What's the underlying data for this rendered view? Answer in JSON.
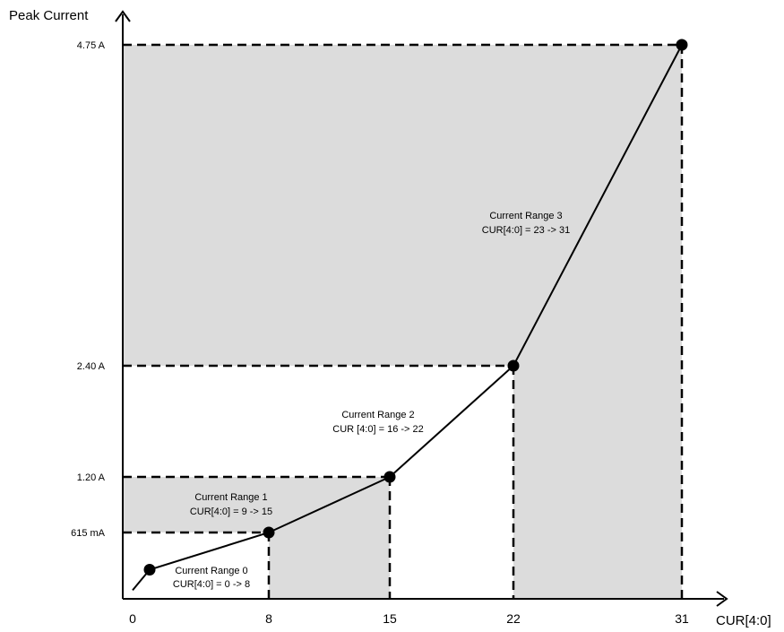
{
  "chart_data": {
    "type": "line",
    "xlabel": "CUR[4:0]",
    "ylabel": "Peak Current",
    "x_ticks": [
      {
        "value": 0,
        "label": "0"
      },
      {
        "value": 8,
        "label": "8"
      },
      {
        "value": 15,
        "label": "15"
      },
      {
        "value": 22,
        "label": "22"
      },
      {
        "value": 31,
        "label": "31"
      }
    ],
    "y_ticks": [
      {
        "value": 0.615,
        "label": "615  mA"
      },
      {
        "value": 1.2,
        "label": "1.20  A"
      },
      {
        "value": 2.4,
        "label": "2.40  A"
      },
      {
        "value": 4.75,
        "label": "4.75  A"
      }
    ],
    "xlim": [
      0,
      31
    ],
    "ylim": [
      0,
      4.75
    ],
    "series": [
      {
        "x": [
          0,
          1,
          8,
          15,
          22,
          31
        ],
        "y": [
          0.08,
          0.27,
          0.615,
          1.2,
          2.4,
          4.75
        ],
        "markers": [
          false,
          true,
          true,
          true,
          true,
          true
        ]
      }
    ],
    "ranges": [
      {
        "title": "Current Range 0",
        "rule": "CUR[4:0] = 0 -> 8",
        "x_from": 0,
        "x_to": 8,
        "y_to": 0.615,
        "shaded": false
      },
      {
        "title": "Current Range 1",
        "rule": "CUR[4:0] = 9 -> 15",
        "x_from": 8,
        "x_to": 15,
        "y_to": 1.2,
        "shaded": true
      },
      {
        "title": "Current Range 2",
        "rule": "CUR [4:0] = 16 -> 22",
        "x_from": 15,
        "x_to": 22,
        "y_to": 2.4,
        "shaded": false
      },
      {
        "title": "Current Range 3",
        "rule": "CUR[4:0] = 23 -> 31",
        "x_from": 22,
        "x_to": 31,
        "y_to": 4.75,
        "shaded": true
      }
    ],
    "colors": {
      "shade": "#dcdcdc",
      "line": "#000000"
    }
  }
}
